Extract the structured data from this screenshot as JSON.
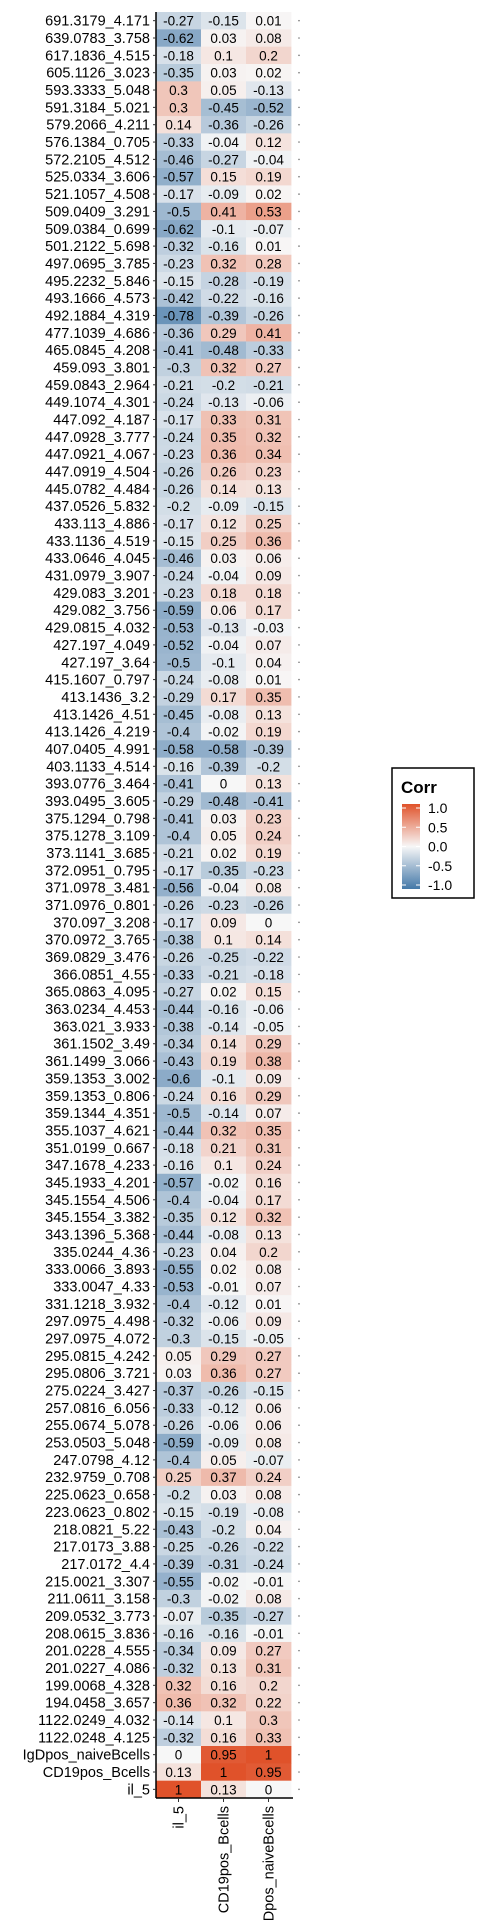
{
  "chart_data": {
    "type": "heatmap",
    "title": "",
    "xlabel": "",
    "ylabel": "",
    "columns": [
      "il_5",
      "CD19pos_Bcells",
      "IgDpos_naiveBcells"
    ],
    "rows": [
      {
        "label": "691.3179_4.171",
        "values": [
          -0.27,
          -0.15,
          0.01
        ]
      },
      {
        "label": "639.0783_3.758",
        "values": [
          -0.62,
          0.03,
          0.08
        ]
      },
      {
        "label": "617.1836_4.515",
        "values": [
          -0.18,
          0.1,
          0.2
        ]
      },
      {
        "label": "605.1126_3.023",
        "values": [
          -0.35,
          0.03,
          0.02
        ]
      },
      {
        "label": "593.3333_5.048",
        "values": [
          0.3,
          0.05,
          -0.13
        ]
      },
      {
        "label": "591.3184_5.021",
        "values": [
          0.3,
          -0.45,
          -0.52
        ]
      },
      {
        "label": "579.2066_4.211",
        "values": [
          0.14,
          -0.36,
          -0.26
        ]
      },
      {
        "label": "576.1384_0.705",
        "values": [
          -0.33,
          -0.04,
          0.12
        ]
      },
      {
        "label": "572.2105_4.512",
        "values": [
          -0.46,
          -0.27,
          -0.04
        ]
      },
      {
        "label": "525.0334_3.606",
        "values": [
          -0.57,
          0.15,
          0.19
        ]
      },
      {
        "label": "521.1057_4.508",
        "values": [
          -0.17,
          -0.09,
          0.02
        ]
      },
      {
        "label": "509.0409_3.291",
        "values": [
          -0.5,
          0.41,
          0.53
        ]
      },
      {
        "label": "509.0384_0.699",
        "values": [
          -0.62,
          -0.1,
          -0.07
        ]
      },
      {
        "label": "501.2122_5.698",
        "values": [
          -0.32,
          -0.16,
          0.01
        ]
      },
      {
        "label": "497.0695_3.785",
        "values": [
          -0.23,
          0.32,
          0.28
        ]
      },
      {
        "label": "495.2232_5.846",
        "values": [
          -0.15,
          -0.28,
          -0.19
        ]
      },
      {
        "label": "493.1666_4.573",
        "values": [
          -0.42,
          -0.22,
          -0.16
        ]
      },
      {
        "label": "492.1884_4.319",
        "values": [
          -0.78,
          -0.39,
          -0.26
        ]
      },
      {
        "label": "477.1039_4.686",
        "values": [
          -0.36,
          0.29,
          0.41
        ]
      },
      {
        "label": "465.0845_4.208",
        "values": [
          -0.41,
          -0.48,
          -0.33
        ]
      },
      {
        "label": "459.093_3.801",
        "values": [
          -0.3,
          0.32,
          0.27
        ]
      },
      {
        "label": "459.0843_2.964",
        "values": [
          -0.21,
          -0.2,
          -0.21
        ]
      },
      {
        "label": "449.1074_4.301",
        "values": [
          -0.24,
          -0.13,
          -0.06
        ]
      },
      {
        "label": "447.092_4.187",
        "values": [
          -0.17,
          0.33,
          0.31
        ]
      },
      {
        "label": "447.0928_3.777",
        "values": [
          -0.24,
          0.35,
          0.32
        ]
      },
      {
        "label": "447.0921_4.067",
        "values": [
          -0.23,
          0.36,
          0.34
        ]
      },
      {
        "label": "447.0919_4.504",
        "values": [
          -0.26,
          0.26,
          0.23
        ]
      },
      {
        "label": "445.0782_4.484",
        "values": [
          -0.26,
          0.14,
          0.13
        ]
      },
      {
        "label": "437.0526_5.832",
        "values": [
          -0.2,
          -0.09,
          -0.15
        ]
      },
      {
        "label": "433.113_4.886",
        "values": [
          -0.17,
          0.12,
          0.25
        ]
      },
      {
        "label": "433.1136_4.519",
        "values": [
          -0.15,
          0.25,
          0.36
        ]
      },
      {
        "label": "433.0646_4.045",
        "values": [
          -0.46,
          0.03,
          0.06
        ]
      },
      {
        "label": "431.0979_3.907",
        "values": [
          -0.24,
          -0.04,
          0.09
        ]
      },
      {
        "label": "429.083_3.201",
        "values": [
          -0.23,
          0.18,
          0.18
        ]
      },
      {
        "label": "429.082_3.756",
        "values": [
          -0.59,
          0.06,
          0.17
        ]
      },
      {
        "label": "429.0815_4.032",
        "values": [
          -0.53,
          -0.13,
          -0.03
        ]
      },
      {
        "label": "427.197_4.049",
        "values": [
          -0.52,
          -0.04,
          0.07
        ]
      },
      {
        "label": "427.197_3.64",
        "values": [
          -0.5,
          -0.1,
          0.04
        ]
      },
      {
        "label": "415.1607_0.797",
        "values": [
          -0.24,
          -0.08,
          0.01
        ]
      },
      {
        "label": "413.1436_3.2",
        "values": [
          -0.29,
          0.17,
          0.35
        ]
      },
      {
        "label": "413.1426_4.51",
        "values": [
          -0.45,
          -0.08,
          0.13
        ]
      },
      {
        "label": "413.1426_4.219",
        "values": [
          -0.4,
          -0.02,
          0.19
        ]
      },
      {
        "label": "407.0405_4.991",
        "values": [
          -0.58,
          -0.58,
          -0.39
        ]
      },
      {
        "label": "403.1133_4.514",
        "values": [
          -0.16,
          -0.39,
          -0.2
        ]
      },
      {
        "label": "393.0776_3.464",
        "values": [
          -0.41,
          0,
          0.13
        ]
      },
      {
        "label": "393.0495_3.605",
        "values": [
          -0.29,
          -0.48,
          -0.41
        ]
      },
      {
        "label": "375.1294_0.798",
        "values": [
          -0.41,
          0.03,
          0.23
        ]
      },
      {
        "label": "375.1278_3.109",
        "values": [
          -0.4,
          0.05,
          0.24
        ]
      },
      {
        "label": "373.1141_3.685",
        "values": [
          -0.21,
          0.02,
          0.19
        ]
      },
      {
        "label": "372.0951_0.795",
        "values": [
          -0.17,
          -0.35,
          -0.23
        ]
      },
      {
        "label": "371.0978_3.481",
        "values": [
          -0.56,
          -0.04,
          0.08
        ]
      },
      {
        "label": "371.0976_0.801",
        "values": [
          -0.26,
          -0.23,
          -0.26
        ]
      },
      {
        "label": "370.097_3.208",
        "values": [
          -0.17,
          0.09,
          0
        ]
      },
      {
        "label": "370.0972_3.765",
        "values": [
          -0.38,
          0.1,
          0.14
        ]
      },
      {
        "label": "369.0829_3.476",
        "values": [
          -0.26,
          -0.25,
          -0.22
        ]
      },
      {
        "label": "366.0851_4.55",
        "values": [
          -0.33,
          -0.21,
          -0.18
        ]
      },
      {
        "label": "365.0863_4.095",
        "values": [
          -0.27,
          0.02,
          0.15
        ]
      },
      {
        "label": "363.0234_4.453",
        "values": [
          -0.44,
          -0.16,
          -0.06
        ]
      },
      {
        "label": "363.021_3.933",
        "values": [
          -0.38,
          -0.14,
          -0.05
        ]
      },
      {
        "label": "361.1502_3.49",
        "values": [
          -0.34,
          0.14,
          0.29
        ]
      },
      {
        "label": "361.1499_3.066",
        "values": [
          -0.43,
          0.19,
          0.38
        ]
      },
      {
        "label": "359.1353_3.002",
        "values": [
          -0.6,
          -0.1,
          0.09
        ]
      },
      {
        "label": "359.1353_0.806",
        "values": [
          -0.24,
          0.16,
          0.29
        ]
      },
      {
        "label": "359.1344_4.351",
        "values": [
          -0.5,
          -0.14,
          0.07
        ]
      },
      {
        "label": "355.1037_4.621",
        "values": [
          -0.44,
          0.32,
          0.35
        ]
      },
      {
        "label": "351.0199_0.667",
        "values": [
          -0.18,
          0.21,
          0.31
        ]
      },
      {
        "label": "347.1678_4.233",
        "values": [
          -0.16,
          0.1,
          0.24
        ]
      },
      {
        "label": "345.1933_4.201",
        "values": [
          -0.57,
          -0.02,
          0.16
        ]
      },
      {
        "label": "345.1554_4.506",
        "values": [
          -0.4,
          -0.04,
          0.17
        ]
      },
      {
        "label": "345.1554_3.382",
        "values": [
          -0.35,
          0.12,
          0.32
        ]
      },
      {
        "label": "343.1396_5.368",
        "values": [
          -0.44,
          -0.08,
          0.13
        ]
      },
      {
        "label": "335.0244_4.36",
        "values": [
          -0.23,
          0.04,
          0.2
        ]
      },
      {
        "label": "333.0066_3.893",
        "values": [
          -0.55,
          0.02,
          0.08
        ]
      },
      {
        "label": "333.0047_4.33",
        "values": [
          -0.53,
          -0.01,
          0.07
        ]
      },
      {
        "label": "331.1218_3.932",
        "values": [
          -0.4,
          -0.12,
          0.01
        ]
      },
      {
        "label": "297.0975_4.498",
        "values": [
          -0.32,
          -0.06,
          0.09
        ]
      },
      {
        "label": "297.0975_4.072",
        "values": [
          -0.3,
          -0.15,
          -0.05
        ]
      },
      {
        "label": "295.0815_4.242",
        "values": [
          0.05,
          0.29,
          0.27
        ]
      },
      {
        "label": "295.0806_3.721",
        "values": [
          0.03,
          0.36,
          0.27
        ]
      },
      {
        "label": "275.0224_3.427",
        "values": [
          -0.37,
          -0.26,
          -0.15
        ]
      },
      {
        "label": "257.0816_6.056",
        "values": [
          -0.33,
          -0.12,
          0.06
        ]
      },
      {
        "label": "255.0674_5.078",
        "values": [
          -0.26,
          -0.06,
          0.06
        ]
      },
      {
        "label": "253.0503_5.048",
        "values": [
          -0.59,
          -0.09,
          0.08
        ]
      },
      {
        "label": "247.0798_4.12",
        "values": [
          -0.4,
          0.05,
          -0.07
        ]
      },
      {
        "label": "232.9759_0.708",
        "values": [
          0.25,
          0.37,
          0.24
        ]
      },
      {
        "label": "225.0623_0.658",
        "values": [
          -0.2,
          0.03,
          0.08
        ]
      },
      {
        "label": "223.0623_0.802",
        "values": [
          -0.15,
          -0.19,
          -0.08
        ]
      },
      {
        "label": "218.0821_5.22",
        "values": [
          -0.43,
          -0.2,
          0.04
        ]
      },
      {
        "label": "217.0173_3.88",
        "values": [
          -0.25,
          -0.26,
          -0.22
        ]
      },
      {
        "label": "217.0172_4.4",
        "values": [
          -0.39,
          -0.31,
          -0.24
        ]
      },
      {
        "label": "215.0021_3.307",
        "values": [
          -0.55,
          -0.02,
          -0.01
        ]
      },
      {
        "label": "211.0611_3.158",
        "values": [
          -0.3,
          -0.02,
          0.08
        ]
      },
      {
        "label": "209.0532_3.773",
        "values": [
          -0.07,
          -0.35,
          -0.27
        ]
      },
      {
        "label": "208.0615_3.836",
        "values": [
          -0.16,
          -0.16,
          -0.01
        ]
      },
      {
        "label": "201.0228_4.555",
        "values": [
          -0.34,
          0.09,
          0.27
        ]
      },
      {
        "label": "201.0227_4.086",
        "values": [
          -0.32,
          0.13,
          0.31
        ]
      },
      {
        "label": "199.0068_4.328",
        "values": [
          0.32,
          0.16,
          0.2
        ]
      },
      {
        "label": "194.0458_3.657",
        "values": [
          0.36,
          0.32,
          0.22
        ]
      },
      {
        "label": "1122.0249_4.032",
        "values": [
          -0.14,
          0.1,
          0.3
        ]
      },
      {
        "label": "1122.0248_4.125",
        "values": [
          -0.32,
          0.16,
          0.33
        ]
      },
      {
        "label": "IgDpos_naiveBcells",
        "values": [
          0,
          0.95,
          1
        ]
      },
      {
        "label": "CD19pos_Bcells",
        "values": [
          0.13,
          1,
          0.95
        ]
      },
      {
        "label": "il_5",
        "values": [
          1,
          0.13,
          0
        ]
      }
    ],
    "legend": {
      "title": "Corr",
      "ticks": [
        "1.0",
        "0.5",
        "0.0",
        "-0.5",
        "-1.0"
      ],
      "range": [
        -1,
        1
      ],
      "placement": "right"
    },
    "colors": {
      "negative": "#4478a8",
      "zero": "#f7f7f7",
      "positive": "#e0522a"
    },
    "grid": false
  }
}
